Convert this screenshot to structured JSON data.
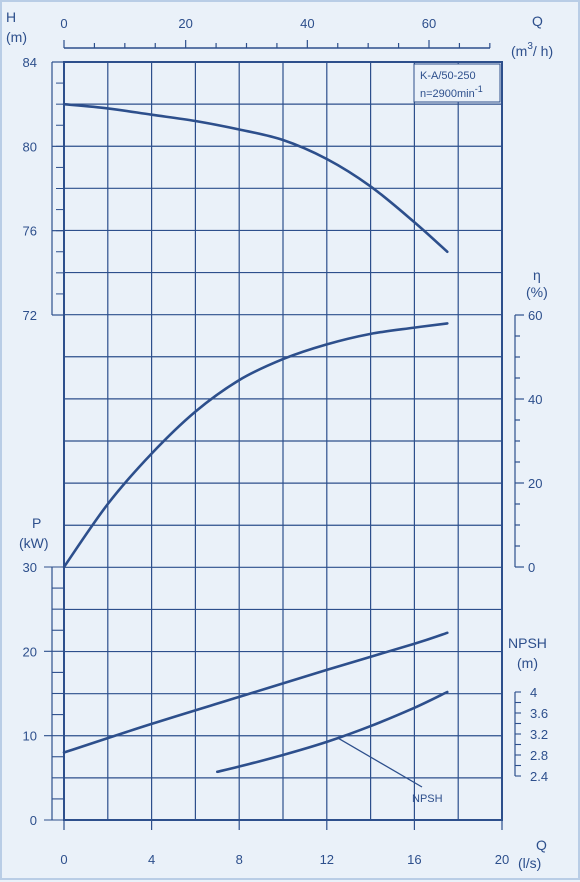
{
  "chart_data": {
    "type": "line",
    "model_box": {
      "model": "K-A/50-250",
      "speed": "n=2900min",
      "speed_sup": "-1"
    },
    "axes": {
      "q_m3h": {
        "label": "Q",
        "unit": "(m",
        "unit_sup": "3",
        "unit_tail": "/ h)",
        "range": [
          0,
          70
        ],
        "ticks": [
          "0",
          "20",
          "40",
          "60"
        ],
        "tick_values": [
          0,
          20,
          40,
          60
        ]
      },
      "q_ls": {
        "label": "Q",
        "unit": "(l/s)",
        "range": [
          0,
          20
        ],
        "ticks": [
          "0",
          "4",
          "8",
          "12",
          "16",
          "20"
        ],
        "tick_values": [
          0,
          4,
          8,
          12,
          16,
          20
        ]
      },
      "head": {
        "label": "H",
        "unit": "(m)",
        "range": [
          72,
          84
        ],
        "ticks": [
          "72",
          "76",
          "80",
          "84"
        ],
        "tick_values": [
          72,
          76,
          80,
          84
        ]
      },
      "efficiency": {
        "label": "η",
        "unit": "(%)",
        "range": [
          0,
          60
        ],
        "ticks": [
          "0",
          "20",
          "40",
          "60"
        ],
        "tick_values": [
          0,
          20,
          40,
          60
        ]
      },
      "power": {
        "label": "P",
        "unit": "(kW)",
        "range": [
          0,
          30
        ],
        "ticks": [
          "0",
          "10",
          "20",
          "30"
        ],
        "tick_values": [
          0,
          10,
          20,
          30
        ]
      },
      "npsh": {
        "label": "NPSH",
        "unit": "(m)",
        "range": [
          2.4,
          4
        ],
        "ticks": [
          "2.4",
          "2.8",
          "3.2",
          "3.6",
          "4"
        ],
        "tick_values": [
          2.4,
          2.8,
          3.2,
          3.6,
          4
        ]
      }
    },
    "series": [
      {
        "key": "head",
        "axis": "head",
        "x": [
          0,
          2,
          4,
          6,
          8,
          10,
          12,
          14,
          16,
          17.5
        ],
        "y": [
          82,
          81.8,
          81.5,
          81.2,
          80.8,
          80.3,
          79.4,
          78.1,
          76.4,
          75
        ]
      },
      {
        "key": "efficiency",
        "axis": "efficiency",
        "x": [
          0,
          2,
          4,
          6,
          8,
          10,
          12,
          14,
          16,
          17.5
        ],
        "y": [
          0,
          15,
          27,
          37,
          44.5,
          49.5,
          53,
          55.5,
          57,
          58
        ]
      },
      {
        "key": "power",
        "axis": "power",
        "x": [
          0,
          4,
          8,
          12,
          16,
          17.5
        ],
        "y": [
          8,
          11.4,
          14.6,
          17.8,
          20.9,
          22.2
        ]
      },
      {
        "key": "npsh",
        "axis": "npsh",
        "name": "NPSH",
        "x": [
          7,
          8,
          10,
          12,
          14,
          16,
          17.5
        ],
        "y": [
          2.48,
          2.58,
          2.8,
          3.05,
          3.35,
          3.7,
          4
        ]
      }
    ],
    "annotation": "NPSH",
    "grid": true
  }
}
